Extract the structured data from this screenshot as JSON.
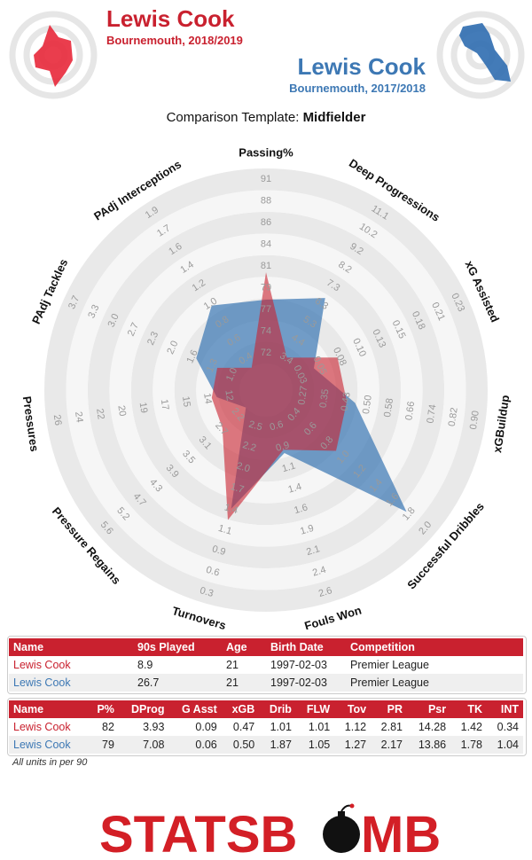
{
  "players": [
    {
      "name": "Lewis Cook",
      "subtitle": "Bournemouth, 2018/2019",
      "color": "#c9212f"
    },
    {
      "name": "Lewis Cook",
      "subtitle": "Bournemouth, 2017/2018",
      "color": "#3d78b4"
    }
  ],
  "template": {
    "prefix": "Comparison Template:",
    "name": "Midfielder"
  },
  "chart_data": {
    "type": "radar",
    "axes": [
      {
        "label": "Passing%",
        "ticks": [
          "72",
          "74",
          "77",
          "79",
          "81",
          "84",
          "86",
          "88",
          "91"
        ],
        "min": 72,
        "max": 91
      },
      {
        "label": "Deep Progressions",
        "ticks": [
          "3.4",
          "4.4",
          "5.3",
          "6.3",
          "7.3",
          "8.2",
          "9.2",
          "10.2",
          "11.1"
        ],
        "min": 3.4,
        "max": 11.1
      },
      {
        "label": "xG Assisted",
        "ticks": [
          "0.03",
          "0.05",
          "0.08",
          "0.10",
          "0.13",
          "0.15",
          "0.18",
          "0.21",
          "0.23"
        ],
        "min": 0.03,
        "max": 0.23
      },
      {
        "label": "xGBuildup",
        "ticks": [
          "0.27",
          "0.35",
          "0.43",
          "0.50",
          "0.58",
          "0.66",
          "0.74",
          "0.82",
          "0.90"
        ],
        "min": 0.27,
        "max": 0.9
      },
      {
        "label": "Successful Dribbles",
        "ticks": [
          "0.4",
          "0.6",
          "0.8",
          "1.0",
          "1.2",
          "1.4",
          "1.6",
          "1.8",
          "2.0"
        ],
        "min": 0.4,
        "max": 2.0
      },
      {
        "label": "Fouls Won",
        "ticks": [
          "0.6",
          "0.9",
          "1.1",
          "1.4",
          "1.6",
          "1.9",
          "2.1",
          "2.4",
          "2.6"
        ],
        "min": 0.6,
        "max": 2.6
      },
      {
        "label": "Turnovers",
        "ticks": [
          "2.5",
          "2.2",
          "2.0",
          "1.7",
          "1.4",
          "1.1",
          "0.9",
          "0.6",
          "0.3"
        ],
        "min": 2.5,
        "max": 0.3
      },
      {
        "label": "Pressure Regains",
        "ticks": [
          "2.2",
          "2.7",
          "3.1",
          "3.5",
          "3.9",
          "4.3",
          "4.7",
          "5.2",
          "5.6"
        ],
        "min": 2.2,
        "max": 5.6
      },
      {
        "label": "Pressures",
        "ticks": [
          "12",
          "14",
          "15",
          "17",
          "19",
          "20",
          "22",
          "24",
          "26"
        ],
        "min": 12,
        "max": 26
      },
      {
        "label": "PAdj Tackles",
        "ticks": [
          "1.0",
          "1.3",
          "1.6",
          "2.0",
          "2.3",
          "2.7",
          "3.0",
          "3.3",
          "3.7"
        ],
        "min": 1.0,
        "max": 3.7
      },
      {
        "label": "PAdj Interceptions",
        "ticks": [
          "0.4",
          "0.6",
          "0.8",
          "1.0",
          "1.2",
          "1.4",
          "1.6",
          "1.7",
          "1.9"
        ],
        "min": 0.4,
        "max": 1.9
      }
    ],
    "series": [
      {
        "name": "Lewis Cook",
        "color": "#c9212f",
        "values": [
          82,
          3.93,
          0.09,
          0.47,
          1.01,
          1.01,
          1.12,
          2.81,
          14.28,
          1.42,
          0.34
        ]
      },
      {
        "name": "Lewis Cook",
        "color": "#3d78b4",
        "values": [
          79,
          7.08,
          0.06,
          0.5,
          1.87,
          1.05,
          1.27,
          2.17,
          13.86,
          1.78,
          1.04
        ]
      }
    ]
  },
  "info_table": {
    "headers": [
      "Name",
      "90s Played",
      "Age",
      "Birth Date",
      "Competition"
    ],
    "rows": [
      [
        "Lewis Cook",
        "8.9",
        "21",
        "1997-02-03",
        "Premier League"
      ],
      [
        "Lewis Cook",
        "26.7",
        "21",
        "1997-02-03",
        "Premier League"
      ]
    ]
  },
  "stats_table": {
    "headers": [
      "Name",
      "P%",
      "DProg",
      "G Asst",
      "xGB",
      "Drib",
      "FLW",
      "Tov",
      "PR",
      "Psr",
      "TK",
      "INT"
    ],
    "rows": [
      [
        "Lewis Cook",
        "82",
        "3.93",
        "0.09",
        "0.47",
        "1.01",
        "1.01",
        "1.12",
        "2.81",
        "14.28",
        "1.42",
        "0.34"
      ],
      [
        "Lewis Cook",
        "79",
        "7.08",
        "0.06",
        "0.50",
        "1.87",
        "1.05",
        "1.27",
        "2.17",
        "13.86",
        "1.78",
        "1.04"
      ]
    ]
  },
  "footnote": "All units in per 90",
  "logo": {
    "text_left": "STATSB",
    "text_right": "MB",
    "color": "#d31f26"
  }
}
